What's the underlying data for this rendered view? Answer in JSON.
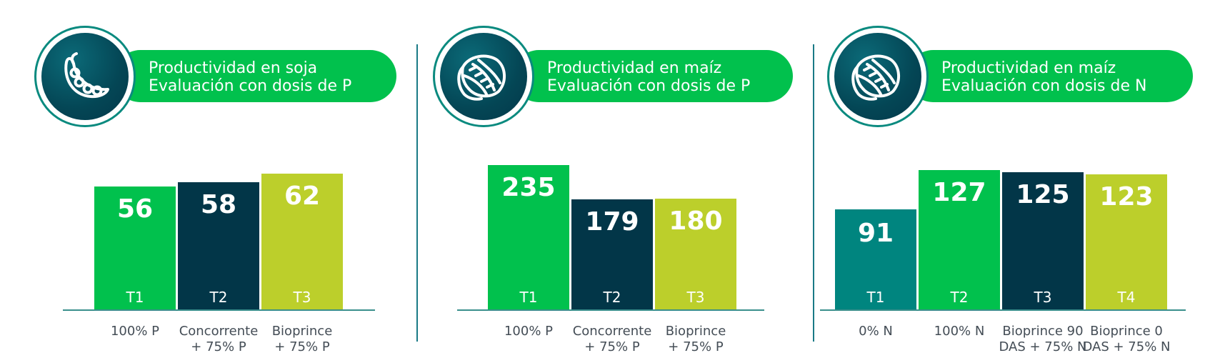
{
  "colors": {
    "green": "#01c14d",
    "navy": "#023648",
    "lime": "#bccf2b",
    "teal": "#00857f",
    "header_bg": "#01c14d",
    "divider": "#1a7a86"
  },
  "chart_data": [
    {
      "type": "bar",
      "title_line1": "Productividad en soja",
      "title_line2": "Evaluación con dosis de P",
      "icon": "soy-pod-icon",
      "ylim": [
        0,
        70
      ],
      "categories": [
        "T1",
        "T2",
        "T3"
      ],
      "tick_labels": [
        [
          "100% P"
        ],
        [
          "Concorrente",
          "+ 75% P"
        ],
        [
          "Bioprince",
          "+ 75% P"
        ]
      ],
      "values": [
        56,
        58,
        62
      ],
      "value_labels": [
        "56",
        "58",
        "62"
      ],
      "bar_colors": [
        "#01c14d",
        "#023648",
        "#bccf2b"
      ]
    },
    {
      "type": "bar",
      "title_line1": "Productividad en maíz",
      "title_line2": "Evaluación con dosis de P",
      "icon": "corn-ear-icon",
      "ylim": [
        0,
        250
      ],
      "categories": [
        "T1",
        "T2",
        "T3"
      ],
      "tick_labels": [
        [
          "100% P"
        ],
        [
          "Concorrente",
          "+ 75% P"
        ],
        [
          "Bioprince",
          "+ 75% P"
        ]
      ],
      "values": [
        235,
        179,
        180
      ],
      "value_labels": [
        "235",
        "179",
        "180"
      ],
      "bar_colors": [
        "#01c14d",
        "#023648",
        "#bccf2b"
      ]
    },
    {
      "type": "bar",
      "title_line1": "Productividad en maíz",
      "title_line2": "Evaluación con dosis de N",
      "icon": "corn-ear-icon",
      "ylim": [
        0,
        140
      ],
      "categories": [
        "T1",
        "T2",
        "T3",
        "T4"
      ],
      "tick_labels": [
        [
          "0% N"
        ],
        [
          "100% N"
        ],
        [
          "Bioprince 90",
          "DAS + 75% N"
        ],
        [
          "Bioprince 0",
          "DAS + 75% N"
        ]
      ],
      "values": [
        91,
        127,
        125,
        123
      ],
      "value_labels": [
        "91",
        "127",
        "125",
        "123"
      ],
      "bar_colors": [
        "#00857f",
        "#01c14d",
        "#023648",
        "#bccf2b"
      ]
    }
  ]
}
